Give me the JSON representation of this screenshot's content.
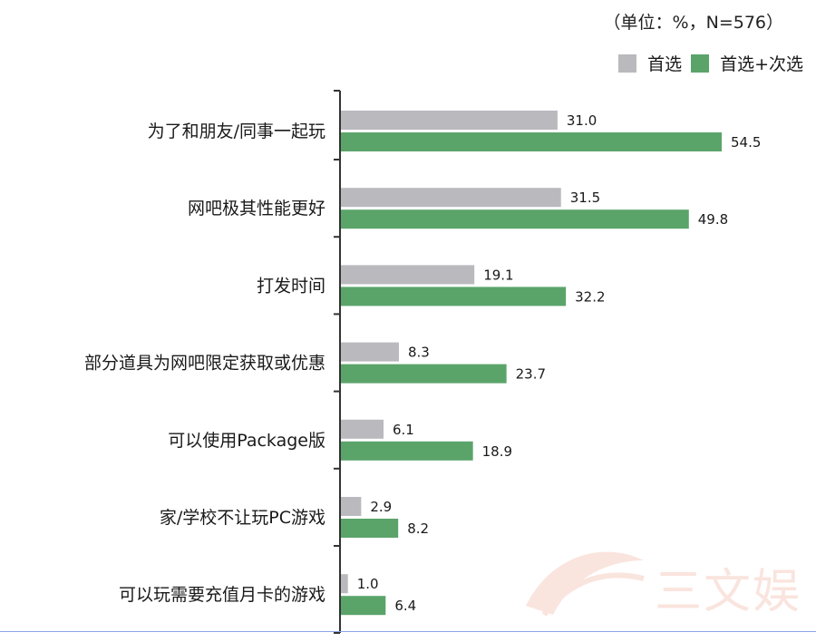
{
  "unit_note": "（单位：%，N=576）",
  "legend": [
    {
      "label": "首选",
      "color": "#b9b9be"
    },
    {
      "label": "首选+次选",
      "color": "#5aa46a"
    }
  ],
  "watermark": {
    "text": "三文娱"
  },
  "chart_data": {
    "type": "bar",
    "orientation": "horizontal",
    "categories": [
      "为了和朋友/同事一起玩",
      "网吧极其性能更好",
      "打发时间",
      "部分道具为网吧限定获取或优惠",
      "可以使用Package版",
      "家/学校不让玩PC游戏",
      "可以玩需要充值月卡的游戏"
    ],
    "series": [
      {
        "name": "首选",
        "color": "#b9b9be",
        "values": [
          31.0,
          31.5,
          19.1,
          8.3,
          6.1,
          2.9,
          1.0
        ],
        "labels": [
          "31.0",
          "31.5",
          "19.1",
          "8.3",
          "6.1",
          "2.9",
          "1.0"
        ]
      },
      {
        "name": "首选+次选",
        "color": "#5aa46a",
        "values": [
          54.5,
          49.8,
          32.2,
          23.7,
          18.9,
          8.2,
          6.4
        ],
        "labels": [
          "54.5",
          "49.8",
          "32.2",
          "23.7",
          "18.9",
          "8.2",
          "6.4"
        ]
      }
    ],
    "xlim": [
      0,
      60
    ],
    "grid": false,
    "legend_position": "top-right"
  }
}
